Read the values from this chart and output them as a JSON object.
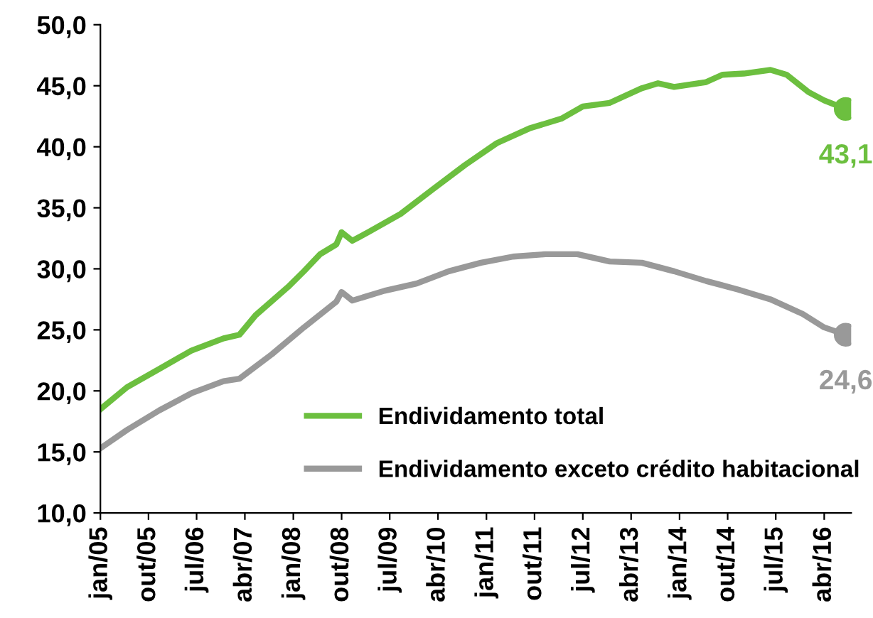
{
  "chart_data": {
    "type": "line",
    "x": [
      "2005-01",
      "2005-06",
      "2005-12",
      "2006-06",
      "2006-12",
      "2007-03",
      "2007-06",
      "2007-12",
      "2008-03",
      "2008-06",
      "2008-09",
      "2008-10",
      "2008-12",
      "2009-03",
      "2009-09",
      "2010-03",
      "2010-09",
      "2011-03",
      "2011-09",
      "2012-03",
      "2012-07",
      "2012-12",
      "2013-06",
      "2013-09",
      "2013-12",
      "2014-06",
      "2014-09",
      "2015-01",
      "2015-06",
      "2015-09",
      "2016-01",
      "2016-04",
      "2016-08"
    ],
    "series": [
      {
        "name": "Endividamento total",
        "color": "#6cbf3f",
        "values": [
          18.5,
          20.3,
          21.8,
          23.3,
          24.3,
          24.6,
          26.2,
          28.5,
          29.8,
          31.2,
          32.0,
          33.0,
          32.3,
          33.0,
          34.5,
          36.5,
          38.5,
          40.3,
          41.5,
          42.3,
          43.3,
          43.6,
          44.8,
          45.2,
          44.9,
          45.3,
          45.9,
          46.0,
          46.3,
          45.9,
          44.5,
          43.8,
          43.1
        ]
      },
      {
        "name": "Endividamento exceto crédito habitacional",
        "color": "#999999",
        "x": [
          "2005-01",
          "2005-06",
          "2005-12",
          "2006-06",
          "2006-12",
          "2007-03",
          "2007-09",
          "2008-03",
          "2008-09",
          "2008-10",
          "2008-12",
          "2009-06",
          "2009-12",
          "2010-06",
          "2010-12",
          "2011-06",
          "2011-12",
          "2012-06",
          "2012-12",
          "2013-06",
          "2013-12",
          "2014-06",
          "2014-12",
          "2015-06",
          "2015-12",
          "2016-04",
          "2016-08"
        ],
        "values": [
          15.3,
          16.8,
          18.4,
          19.8,
          20.8,
          21.0,
          23.0,
          25.2,
          27.3,
          28.1,
          27.4,
          28.2,
          28.8,
          29.8,
          30.5,
          31.0,
          31.2,
          31.2,
          30.6,
          30.5,
          29.8,
          29.0,
          28.3,
          27.5,
          26.3,
          25.2,
          24.6
        ]
      }
    ],
    "ylim": [
      10,
      50
    ],
    "yticks": [
      {
        "value": 10,
        "label": "10,0"
      },
      {
        "value": 15,
        "label": "15,0"
      },
      {
        "value": 20,
        "label": "20,0"
      },
      {
        "value": 25,
        "label": "25,0"
      },
      {
        "value": 30,
        "label": "30,0"
      },
      {
        "value": 35,
        "label": "35,0"
      },
      {
        "value": 40,
        "label": "40,0"
      },
      {
        "value": 45,
        "label": "45,0"
      },
      {
        "value": 50,
        "label": "50,0"
      }
    ],
    "xlim": [
      "2005-01",
      "2016-09"
    ],
    "xticks": [
      {
        "value": "2005-01",
        "label": "jan/05"
      },
      {
        "value": "2005-10",
        "label": "out/05"
      },
      {
        "value": "2006-07",
        "label": "jul/06"
      },
      {
        "value": "2007-04",
        "label": "abr/07"
      },
      {
        "value": "2008-01",
        "label": "jan/08"
      },
      {
        "value": "2008-10",
        "label": "out/08"
      },
      {
        "value": "2009-07",
        "label": "jul/09"
      },
      {
        "value": "2010-04",
        "label": "abr/10"
      },
      {
        "value": "2011-01",
        "label": "jan/11"
      },
      {
        "value": "2011-10",
        "label": "out/11"
      },
      {
        "value": "2012-07",
        "label": "jul/12"
      },
      {
        "value": "2013-04",
        "label": "abr/13"
      },
      {
        "value": "2014-01",
        "label": "jan/14"
      },
      {
        "value": "2014-10",
        "label": "out/14"
      },
      {
        "value": "2015-07",
        "label": "jul/15"
      },
      {
        "value": "2016-04",
        "label": "abr/16"
      }
    ],
    "annotations": [
      {
        "text": "43,1",
        "x": "2016-08",
        "y": 43.1
      },
      {
        "text": "24,6",
        "x": "2016-08",
        "y": 24.6
      }
    ],
    "legend": "bottom right",
    "grid": false,
    "marker": "none",
    "line_style": "solid"
  }
}
